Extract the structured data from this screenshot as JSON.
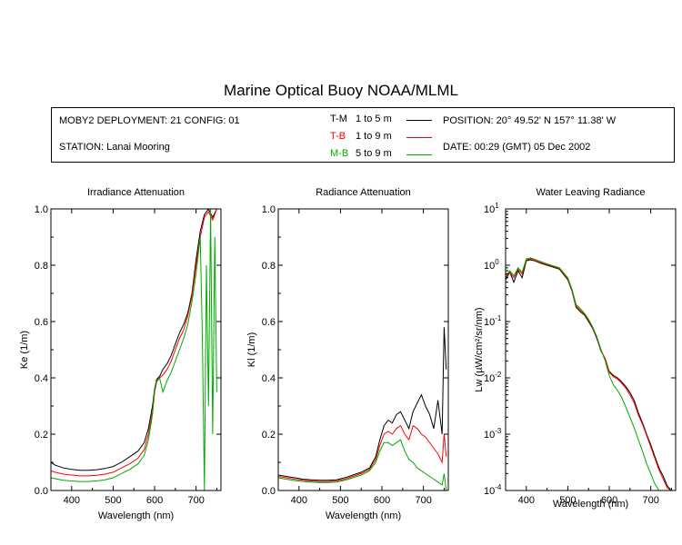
{
  "title": "Marine Optical Buoy NOAA/MLML",
  "info": {
    "deployment": "MOBY2 DEPLOYMENT: 21 CONFIG: 01",
    "station": "STATION: Lanai Mooring",
    "position": "POSITION: 20° 49.52' N   157° 11.38' W",
    "date": "DATE: 00:29 (GMT) 05 Dec 2002"
  },
  "legend": [
    {
      "code": "T-M",
      "range": "1 to 5  m",
      "color": "#000000"
    },
    {
      "code": "T-B",
      "range": "1 to 9  m",
      "color": "#ff0000"
    },
    {
      "code": "M-B",
      "range": "5 to 9  m",
      "color": "#00aa00"
    }
  ],
  "chart_data": [
    {
      "type": "line",
      "title": "Irradiance Attenuation",
      "xlabel": "Wavelength (nm)",
      "ylabel": "Ke  (1/m)",
      "xlim": [
        350,
        760
      ],
      "ylim": [
        0,
        1.0
      ],
      "xticks": [
        "400",
        "500",
        "600",
        "700"
      ],
      "xtick_values": [
        400,
        500,
        600,
        700
      ],
      "yticks": [
        "0.0",
        "0.2",
        "0.4",
        "0.6",
        "0.8",
        "1.0"
      ],
      "ytick_values": [
        0,
        0.2,
        0.4,
        0.6,
        0.8,
        1.0
      ],
      "series": [
        {
          "legend_code": "T-M",
          "color": "#000000",
          "x": [
            350,
            360,
            380,
            400,
            420,
            440,
            460,
            480,
            500,
            520,
            540,
            560,
            575,
            585,
            595,
            600,
            605,
            612,
            620,
            630,
            640,
            650,
            660,
            670,
            680,
            690,
            700,
            710,
            720,
            730,
            740,
            750
          ],
          "y": [
            0.1,
            0.09,
            0.08,
            0.075,
            0.072,
            0.072,
            0.074,
            0.078,
            0.085,
            0.1,
            0.12,
            0.14,
            0.17,
            0.22,
            0.3,
            0.36,
            0.395,
            0.405,
            0.43,
            0.45,
            0.48,
            0.52,
            0.56,
            0.59,
            0.63,
            0.7,
            0.82,
            0.92,
            0.98,
            1.0,
            0.97,
            1.0
          ]
        },
        {
          "legend_code": "T-B",
          "color": "#ff0000",
          "x": [
            350,
            360,
            380,
            400,
            420,
            440,
            460,
            480,
            500,
            520,
            540,
            560,
            575,
            585,
            595,
            600,
            605,
            612,
            620,
            630,
            640,
            650,
            660,
            670,
            680,
            690,
            700,
            710,
            720,
            730,
            740,
            750
          ],
          "y": [
            0.07,
            0.065,
            0.058,
            0.055,
            0.052,
            0.052,
            0.054,
            0.058,
            0.065,
            0.08,
            0.095,
            0.115,
            0.145,
            0.2,
            0.28,
            0.35,
            0.385,
            0.4,
            0.41,
            0.43,
            0.46,
            0.5,
            0.54,
            0.57,
            0.62,
            0.69,
            0.8,
            0.9,
            0.97,
            0.99,
            0.96,
            1.0
          ]
        },
        {
          "legend_code": "M-B",
          "color": "#00aa00",
          "x": [
            350,
            360,
            380,
            400,
            420,
            440,
            460,
            480,
            500,
            520,
            540,
            560,
            575,
            585,
            595,
            600,
            605,
            612,
            620,
            625,
            630,
            640,
            650,
            660,
            670,
            680,
            690,
            700,
            710,
            715,
            720,
            725,
            730,
            735,
            740,
            745,
            750
          ],
          "y": [
            0.045,
            0.042,
            0.036,
            0.034,
            0.032,
            0.032,
            0.034,
            0.038,
            0.045,
            0.06,
            0.075,
            0.095,
            0.125,
            0.18,
            0.27,
            0.35,
            0.39,
            0.4,
            0.35,
            0.37,
            0.39,
            0.42,
            0.46,
            0.5,
            0.54,
            0.59,
            0.67,
            0.77,
            0.9,
            0.55,
            0.0,
            0.8,
            0.3,
            1.0,
            0.2,
            0.9,
            0.35
          ]
        }
      ]
    },
    {
      "type": "line",
      "title": "Radiance Attenuation",
      "xlabel": "Wavelength (nm)",
      "ylabel": "Kl  (1/m)",
      "xlim": [
        350,
        760
      ],
      "ylim": [
        0,
        1.0
      ],
      "xticks": [
        "400",
        "500",
        "600",
        "700"
      ],
      "xtick_values": [
        400,
        500,
        600,
        700
      ],
      "yticks": [
        "0.0",
        "0.2",
        "0.4",
        "0.6",
        "0.8",
        "1.0"
      ],
      "ytick_values": [
        0,
        0.2,
        0.4,
        0.6,
        0.8,
        1.0
      ],
      "series": [
        {
          "legend_code": "T-M",
          "color": "#000000",
          "x": [
            350,
            370,
            390,
            410,
            430,
            450,
            470,
            490,
            510,
            530,
            550,
            570,
            585,
            595,
            605,
            615,
            625,
            635,
            645,
            655,
            665,
            675,
            685,
            695,
            705,
            715,
            725,
            735,
            745,
            750,
            755
          ],
          "y": [
            0.055,
            0.05,
            0.045,
            0.04,
            0.038,
            0.036,
            0.036,
            0.038,
            0.045,
            0.055,
            0.065,
            0.08,
            0.12,
            0.18,
            0.23,
            0.25,
            0.24,
            0.27,
            0.28,
            0.25,
            0.22,
            0.28,
            0.31,
            0.34,
            0.3,
            0.27,
            0.22,
            0.32,
            0.2,
            0.58,
            0.43
          ]
        },
        {
          "legend_code": "T-B",
          "color": "#ff0000",
          "x": [
            350,
            370,
            390,
            410,
            430,
            450,
            470,
            490,
            510,
            530,
            550,
            570,
            585,
            595,
            605,
            615,
            625,
            635,
            645,
            655,
            665,
            675,
            685,
            695,
            705,
            715,
            725,
            735,
            745,
            750,
            755
          ],
          "y": [
            0.05,
            0.045,
            0.04,
            0.036,
            0.034,
            0.032,
            0.032,
            0.034,
            0.04,
            0.05,
            0.06,
            0.075,
            0.11,
            0.16,
            0.2,
            0.21,
            0.2,
            0.22,
            0.23,
            0.2,
            0.18,
            0.23,
            0.22,
            0.2,
            0.19,
            0.17,
            0.15,
            0.13,
            0.1,
            0.2,
            0.12
          ]
        },
        {
          "legend_code": "M-B",
          "color": "#00aa00",
          "x": [
            350,
            370,
            390,
            410,
            430,
            450,
            470,
            490,
            510,
            530,
            550,
            570,
            585,
            595,
            605,
            615,
            625,
            635,
            645,
            655,
            665,
            675,
            685,
            695,
            705,
            715,
            725,
            735,
            745,
            750,
            755
          ],
          "y": [
            0.045,
            0.04,
            0.035,
            0.032,
            0.03,
            0.028,
            0.028,
            0.03,
            0.036,
            0.045,
            0.055,
            0.07,
            0.1,
            0.14,
            0.17,
            0.17,
            0.16,
            0.17,
            0.18,
            0.14,
            0.11,
            0.1,
            0.08,
            0.07,
            0.06,
            0.05,
            0.04,
            0.03,
            0.02,
            0.06,
            0.0
          ]
        }
      ]
    },
    {
      "type": "line",
      "title": "Water Leaving Radiance",
      "xlabel": "Wavelength (nm)",
      "ylabel": "Lw  (µW/cm²/sr/nm)",
      "yscale": "log",
      "xlim": [
        350,
        760
      ],
      "ylim": [
        0.0001,
        10
      ],
      "xticks": [
        "400",
        "500",
        "600",
        "700"
      ],
      "xtick_values": [
        400,
        500,
        600,
        700
      ],
      "yticks": [
        "10^1",
        "10^0",
        "10^-1",
        "10^-2",
        "10^-3",
        "10^-4"
      ],
      "ytick_values": [
        10,
        1,
        0.1,
        0.01,
        0.001,
        0.0001
      ],
      "series": [
        {
          "legend_code": "T-M",
          "color": "#000000",
          "x": [
            350,
            360,
            370,
            380,
            390,
            400,
            410,
            420,
            440,
            460,
            480,
            500,
            510,
            520,
            530,
            540,
            550,
            560,
            570,
            580,
            590,
            600,
            610,
            620,
            630,
            640,
            650,
            660,
            670,
            680,
            690,
            700,
            710,
            720,
            730,
            740,
            750
          ],
          "y": [
            0.55,
            0.75,
            0.5,
            0.8,
            0.6,
            1.2,
            1.25,
            1.2,
            1.05,
            0.95,
            0.85,
            0.55,
            0.35,
            0.18,
            0.15,
            0.13,
            0.1,
            0.075,
            0.05,
            0.03,
            0.022,
            0.013,
            0.011,
            0.01,
            0.0085,
            0.007,
            0.0055,
            0.004,
            0.0024,
            0.0016,
            0.001,
            0.00065,
            0.0004,
            0.00025,
            0.00018,
            0.00012,
            0.0001
          ]
        },
        {
          "legend_code": "T-B",
          "color": "#ff0000",
          "x": [
            350,
            360,
            370,
            380,
            390,
            400,
            410,
            420,
            440,
            460,
            480,
            500,
            510,
            520,
            530,
            540,
            550,
            560,
            570,
            580,
            590,
            600,
            610,
            620,
            630,
            640,
            650,
            660,
            670,
            680,
            690,
            700,
            710,
            720,
            730,
            740,
            750
          ],
          "y": [
            0.6,
            0.75,
            0.6,
            0.85,
            0.7,
            1.25,
            1.3,
            1.22,
            1.08,
            0.98,
            0.88,
            0.57,
            0.36,
            0.19,
            0.16,
            0.135,
            0.105,
            0.078,
            0.052,
            0.031,
            0.022,
            0.0125,
            0.0105,
            0.0095,
            0.008,
            0.0065,
            0.005,
            0.0036,
            0.0022,
            0.0015,
            0.00095,
            0.0006,
            0.00037,
            0.00023,
            0.00016,
            0.00011,
            0.0001
          ]
        },
        {
          "legend_code": "M-B",
          "color": "#00aa00",
          "x": [
            350,
            360,
            370,
            380,
            390,
            400,
            410,
            420,
            440,
            460,
            480,
            500,
            510,
            520,
            530,
            540,
            550,
            560,
            570,
            580,
            590,
            600,
            610,
            620,
            630,
            640,
            650,
            660,
            670,
            680,
            690,
            700,
            710,
            720,
            730,
            740,
            750
          ],
          "y": [
            0.65,
            0.8,
            0.65,
            0.9,
            0.75,
            1.3,
            1.35,
            1.28,
            1.12,
            1.0,
            0.9,
            0.6,
            0.38,
            0.2,
            0.17,
            0.14,
            0.11,
            0.08,
            0.054,
            0.032,
            0.02,
            0.011,
            0.0075,
            0.006,
            0.0045,
            0.003,
            0.002,
            0.0013,
            0.0008,
            0.0005,
            0.0003,
            0.0002,
            0.00013,
            0.0001,
            0.0001,
            0.0001,
            0.0001
          ]
        }
      ]
    }
  ]
}
